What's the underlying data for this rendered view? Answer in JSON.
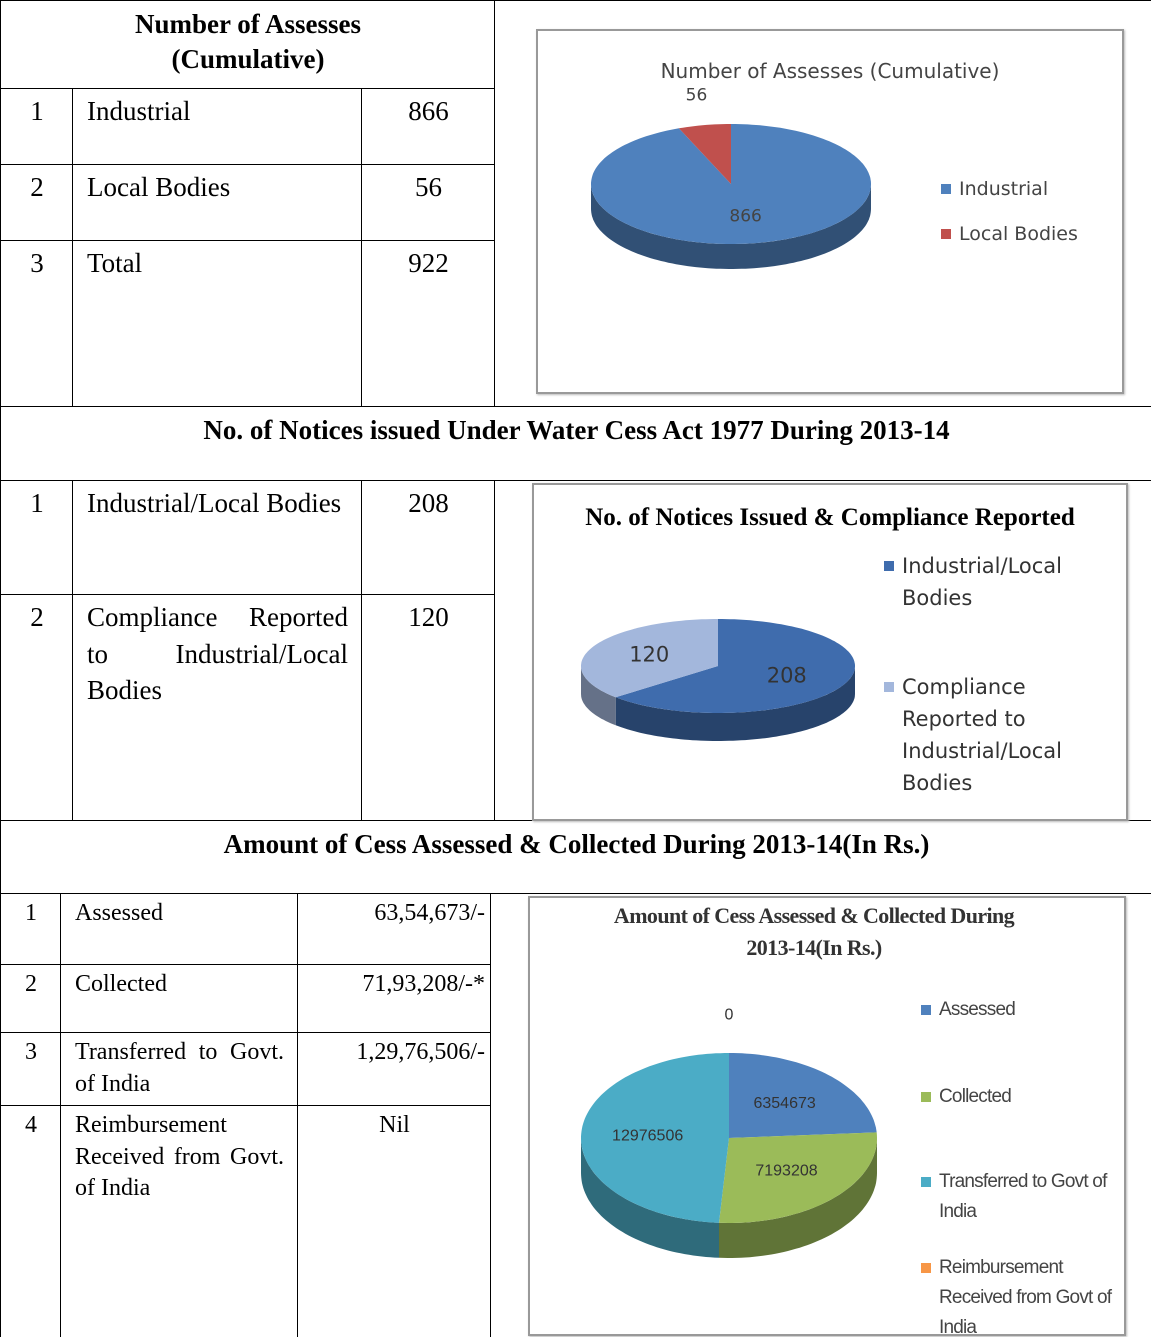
{
  "sections": [
    {
      "title": "Number of Assesses (Cumulative)",
      "rows": [
        [
          "1",
          "Industrial",
          "866"
        ],
        [
          "2",
          "Local Bodies",
          "56"
        ],
        [
          "3",
          "Total",
          "922"
        ]
      ]
    },
    {
      "title": "No. of Notices issued Under Water Cess Act 1977 During 2013-14",
      "rows": [
        [
          "1",
          "Industrial/Local Bodies",
          "208"
        ],
        [
          "2",
          "Compliance Reported to Industrial/Local Bodies",
          "120"
        ]
      ]
    },
    {
      "title": "Amount of Cess Assessed & Collected During 2013-14(In Rs.)",
      "rows": [
        [
          "1",
          "Assessed",
          "63,54,673/-"
        ],
        [
          "2",
          "Collected",
          "71,93,208/-*"
        ],
        [
          "3",
          "Transferred to Govt. of India",
          "1,29,76,506/-"
        ],
        [
          "4",
          "Reimbursement Received from Govt. of India",
          "Nil"
        ]
      ]
    }
  ],
  "chart_data": [
    {
      "type": "pie",
      "title": "Number of Assesses (Cumulative)",
      "categories": [
        "Industrial",
        "Local Bodies"
      ],
      "values": [
        866,
        56
      ],
      "colors": [
        "#4f81bd",
        "#c0504d"
      ]
    },
    {
      "type": "pie",
      "title": "No. of Notices Issued & Compliance Reported",
      "categories": [
        "Industrial/Local Bodies",
        "Compliance Reported to Industrial/Local Bodies"
      ],
      "values": [
        208,
        120
      ],
      "colors": [
        "#3f6cad",
        "#a3b7dc"
      ]
    },
    {
      "type": "pie",
      "title": "Amount of Cess Assessed & Collected During 2013-14(In Rs.)",
      "categories": [
        "Assessed",
        "Collected",
        "Transferred to Govt of India",
        "Reimbursement Received from Govt of India"
      ],
      "values": [
        6354673,
        7193208,
        12976506,
        0
      ],
      "colors": [
        "#4f81bd",
        "#9bbb59",
        "#4bacc6",
        "#f79646"
      ]
    }
  ]
}
